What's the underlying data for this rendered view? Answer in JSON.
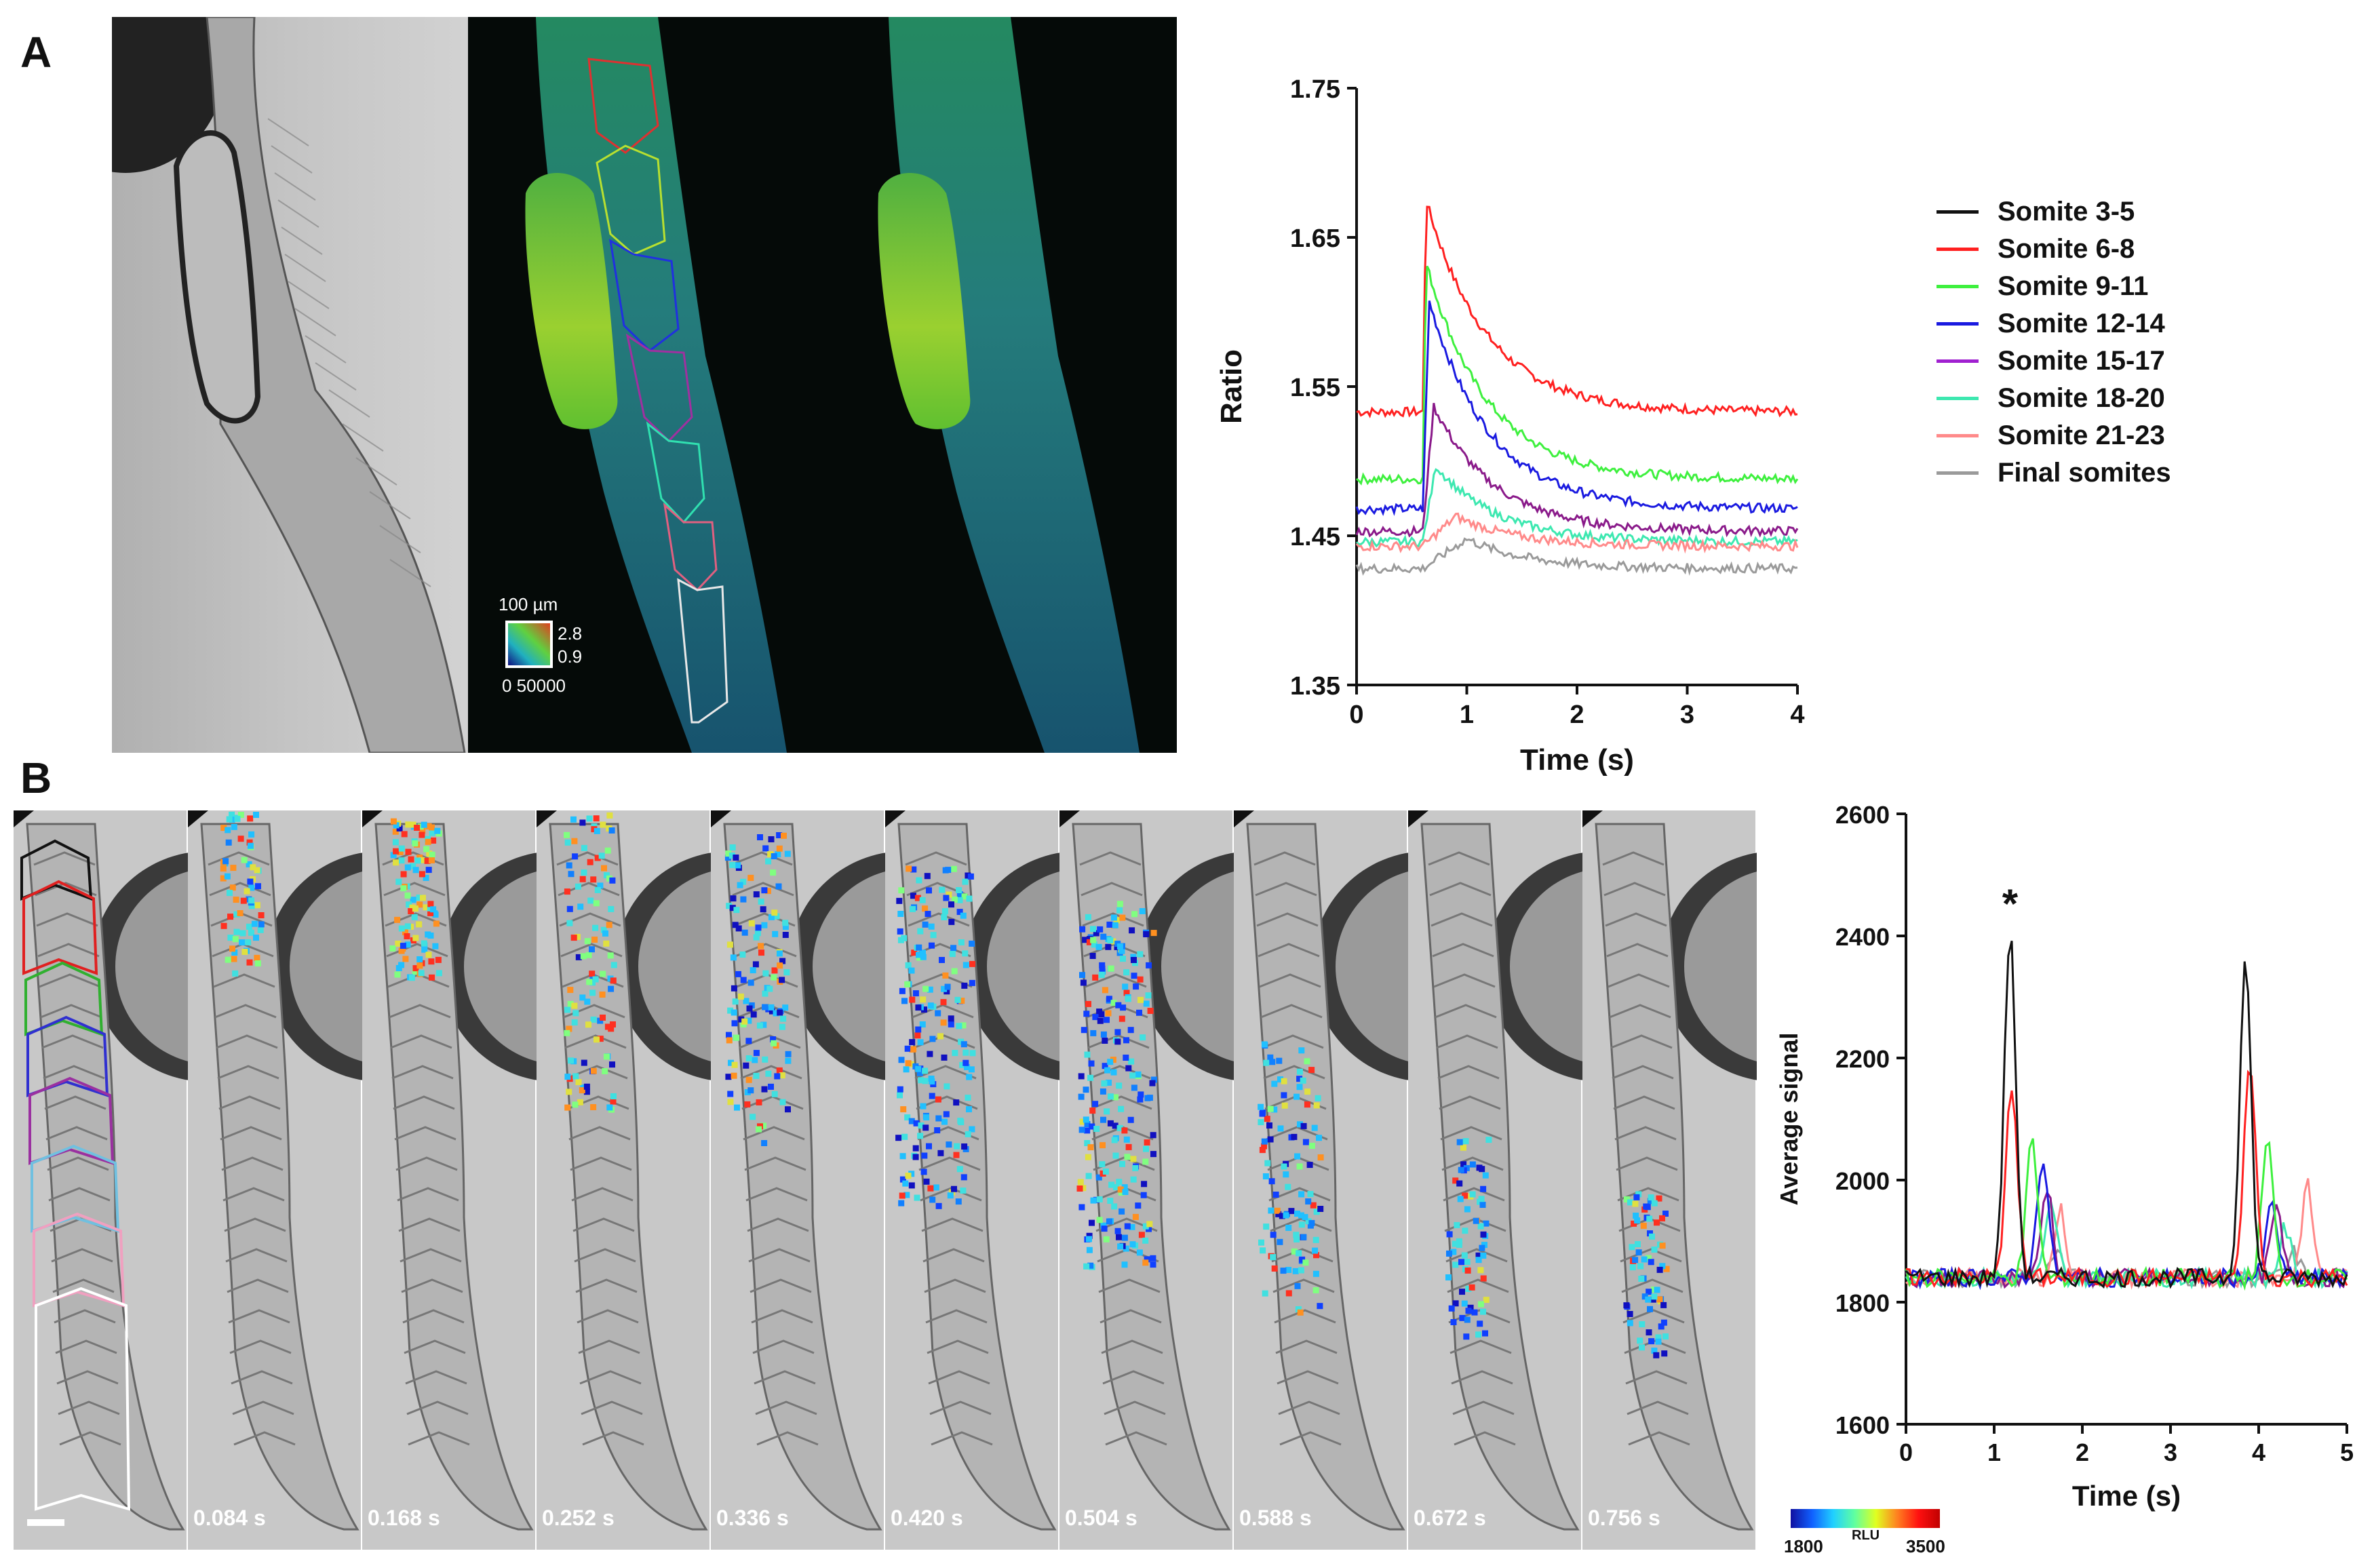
{
  "panels": {
    "a": {
      "letter": "A",
      "scale_text": "100 µm",
      "ratio_max": "2.8",
      "ratio_min": "0.9",
      "intensity_range": "0  50000"
    },
    "b": {
      "letter": "B",
      "time_labels": [
        "0.084 s",
        "0.168 s",
        "0.252 s",
        "0.336 s",
        "0.420 s",
        "0.504 s",
        "0.588 s",
        "0.672 s",
        "0.756 s"
      ],
      "colorbar": {
        "min": "1800",
        "label": "RLU",
        "max": "3500"
      }
    }
  },
  "colors": {
    "somite_3_5": "#111111",
    "somite_6_8": "#ff2020",
    "somite_9_11": "#3ef03e",
    "somite_12_14": "#1a1ae0",
    "somite_15_17": "#8a1a8a",
    "somite_18_20": "#3de8b0",
    "somite_21_23": "#ff8a8a",
    "final": "#9a9a9a"
  },
  "chart_data": [
    {
      "type": "line",
      "title": "",
      "xlabel": "Time (s)",
      "ylabel": "Ratio",
      "xlim": [
        0,
        4
      ],
      "ylim": [
        1.35,
        1.75
      ],
      "x_ticks": [
        "0",
        "1",
        "2",
        "3",
        "4"
      ],
      "y_ticks": [
        "1.35",
        "1.45",
        "1.55",
        "1.65",
        "1.75"
      ],
      "legend_position": "right",
      "series": [
        {
          "name": "Somite 3-5",
          "color": "#111111",
          "baseline": null,
          "peak": null
        },
        {
          "name": "Somite 6-8",
          "color": "#ff2020",
          "baseline": 1.533,
          "peak": 1.675,
          "peak_time": 0.63
        },
        {
          "name": "Somite 9-11",
          "color": "#3ef03e",
          "baseline": 1.488,
          "peak": 1.633,
          "peak_time": 0.63
        },
        {
          "name": "Somite 12-14",
          "color": "#1a1ae0",
          "baseline": 1.468,
          "peak": 1.607,
          "peak_time": 0.66
        },
        {
          "name": "Somite 15-17",
          "color": "#8a1a8a",
          "baseline": 1.453,
          "peak": 1.537,
          "peak_time": 0.7
        },
        {
          "name": "Somite 18-20",
          "color": "#3de8b0",
          "baseline": 1.446,
          "peak": 1.497,
          "peak_time": 0.72
        },
        {
          "name": "Somite 21-23",
          "color": "#ff8a8a",
          "baseline": 1.443,
          "peak": 1.463,
          "peak_time": 0.9
        },
        {
          "name": "Final somites",
          "color": "#9a9a9a",
          "baseline": 1.428,
          "peak": 1.448,
          "peak_time": 1.0
        }
      ]
    },
    {
      "type": "line",
      "title": "",
      "xlabel": "Time (s)",
      "ylabel": "Average signal",
      "xlim": [
        0,
        5
      ],
      "ylim": [
        1600,
        2600
      ],
      "x_ticks": [
        "0",
        "1",
        "2",
        "3",
        "4",
        "5"
      ],
      "y_ticks": [
        "1600",
        "1800",
        "2000",
        "2200",
        "2400",
        "2600"
      ],
      "annotation": "*",
      "annotation_at": [
        1.18,
        2430
      ],
      "baseline": 1840,
      "series": [
        {
          "name": "Somite 3-5",
          "color": "#111111",
          "peaks": [
            [
              1.18,
              2405
            ],
            [
              3.85,
              2360
            ]
          ]
        },
        {
          "name": "Somite 6-8",
          "color": "#ff2020",
          "peaks": [
            [
              1.2,
              2160
            ],
            [
              3.9,
              2200
            ]
          ]
        },
        {
          "name": "Somite 9-11",
          "color": "#3ef03e",
          "peaks": [
            [
              1.43,
              2065
            ],
            [
              4.1,
              2065
            ]
          ]
        },
        {
          "name": "Somite 12-14",
          "color": "#1a1ae0",
          "peaks": [
            [
              1.55,
              2040
            ],
            [
              4.15,
              1960
            ]
          ]
        },
        {
          "name": "Somite 15-17",
          "color": "#8a1a8a",
          "peaks": [
            [
              1.6,
              1990
            ],
            [
              4.2,
              1950
            ]
          ]
        },
        {
          "name": "Somite 18-20",
          "color": "#3de8b0",
          "peaks": [
            [
              1.65,
              1960
            ],
            [
              4.3,
              1920
            ]
          ]
        },
        {
          "name": "Somite 21-23",
          "color": "#ff8a8a",
          "peaks": [
            [
              1.75,
              1950
            ],
            [
              4.55,
              1990
            ]
          ]
        },
        {
          "name": "Final somites",
          "color": "#9a9a9a",
          "peaks": [
            [
              1.7,
              1880
            ],
            [
              4.4,
              1880
            ]
          ]
        }
      ]
    }
  ]
}
